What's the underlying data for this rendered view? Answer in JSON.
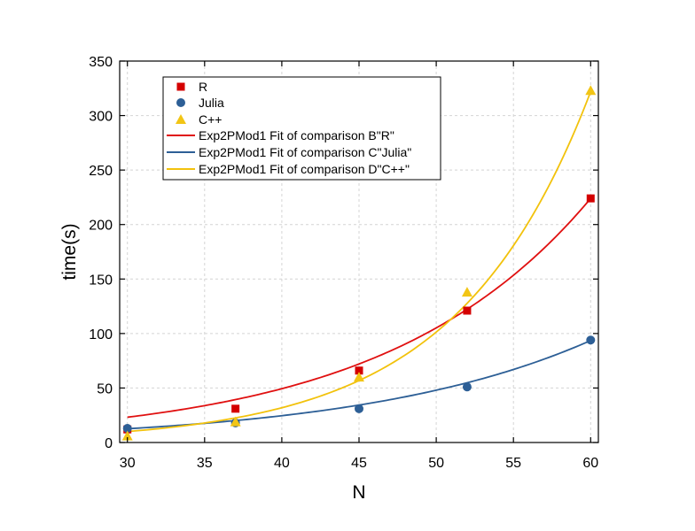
{
  "chart_data": {
    "type": "scatter",
    "title": "",
    "xlabel": "N",
    "ylabel": "time(s)",
    "xlim": [
      29.5,
      60.5
    ],
    "ylim": [
      0,
      350
    ],
    "xticks": [
      30,
      35,
      40,
      45,
      50,
      55,
      60
    ],
    "yticks": [
      0,
      50,
      100,
      150,
      200,
      250,
      300,
      350
    ],
    "grid": true,
    "legend_position": "top-left",
    "series": [
      {
        "name": "R",
        "marker": "square",
        "color": "#d40000",
        "x": [
          30,
          37,
          45,
          52,
          60
        ],
        "y": [
          12,
          31,
          66,
          121,
          224
        ]
      },
      {
        "name": "Julia",
        "marker": "circle",
        "color": "#2d5f96",
        "x": [
          30,
          37,
          45,
          52,
          60
        ],
        "y": [
          13,
          18,
          31,
          51,
          94
        ]
      },
      {
        "name": "C++",
        "marker": "triangle",
        "color": "#f2c515",
        "x": [
          30,
          37,
          45,
          52,
          60
        ],
        "y": [
          6,
          19,
          60,
          138,
          323
        ]
      }
    ],
    "fits": [
      {
        "name": "Exp2PMod1 Fit of comparison B\"R\"",
        "color": "#e01010",
        "a": 2.4,
        "b": 0.0756
      },
      {
        "name": "Exp2PMod1 Fit of comparison C\"Julia\"",
        "color": "#2d5f96",
        "a": 1.7,
        "b": 0.0668
      },
      {
        "name": "Exp2PMod1 Fit of comparison D\"C++\"",
        "color": "#f2c20c",
        "a": 0.313,
        "b": 0.1156
      }
    ]
  }
}
